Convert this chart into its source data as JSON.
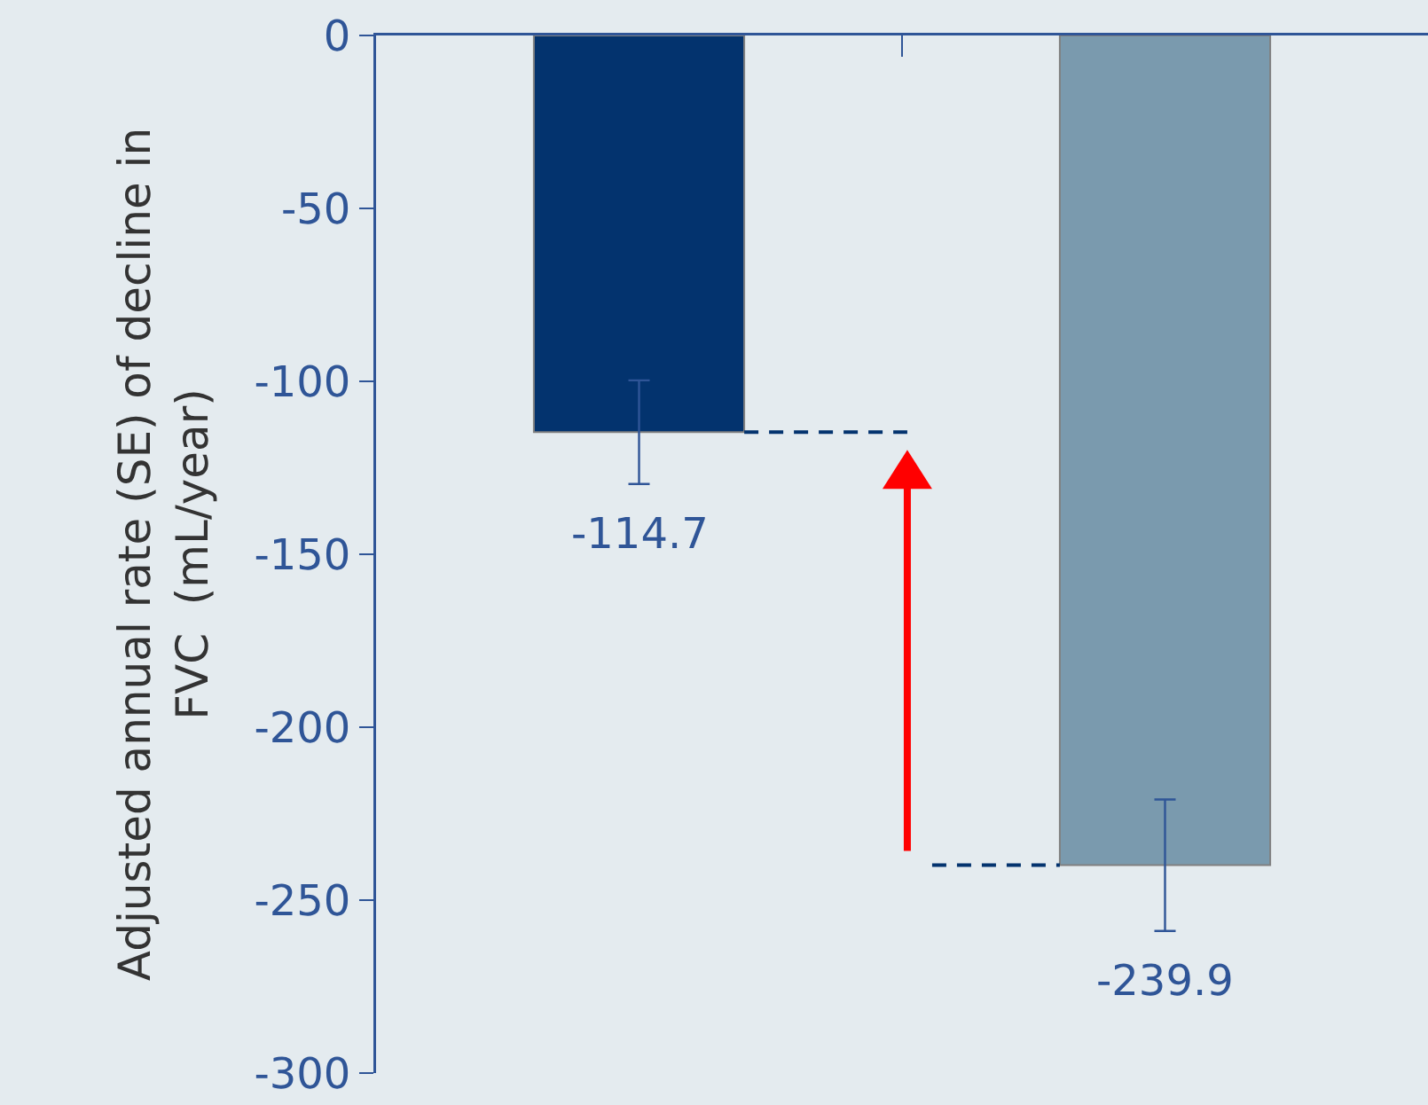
{
  "chart_data": {
    "type": "bar",
    "ylabel": "Adjusted annual rate (SE) of decline in FVC  (mL/year)",
    "categories": [
      null,
      null
    ],
    "values": [
      -114.7,
      -239.9
    ],
    "colors": [
      "#03336e",
      "#7a9aae"
    ],
    "errors": [
      15,
      19
    ],
    "data_labels": true,
    "ylim": [
      -300,
      0
    ],
    "yticks": [
      -300,
      -250,
      -200,
      -150,
      -100,
      -50,
      0
    ],
    "grid": false,
    "legend": false,
    "tick_labels": "y"
  }
}
